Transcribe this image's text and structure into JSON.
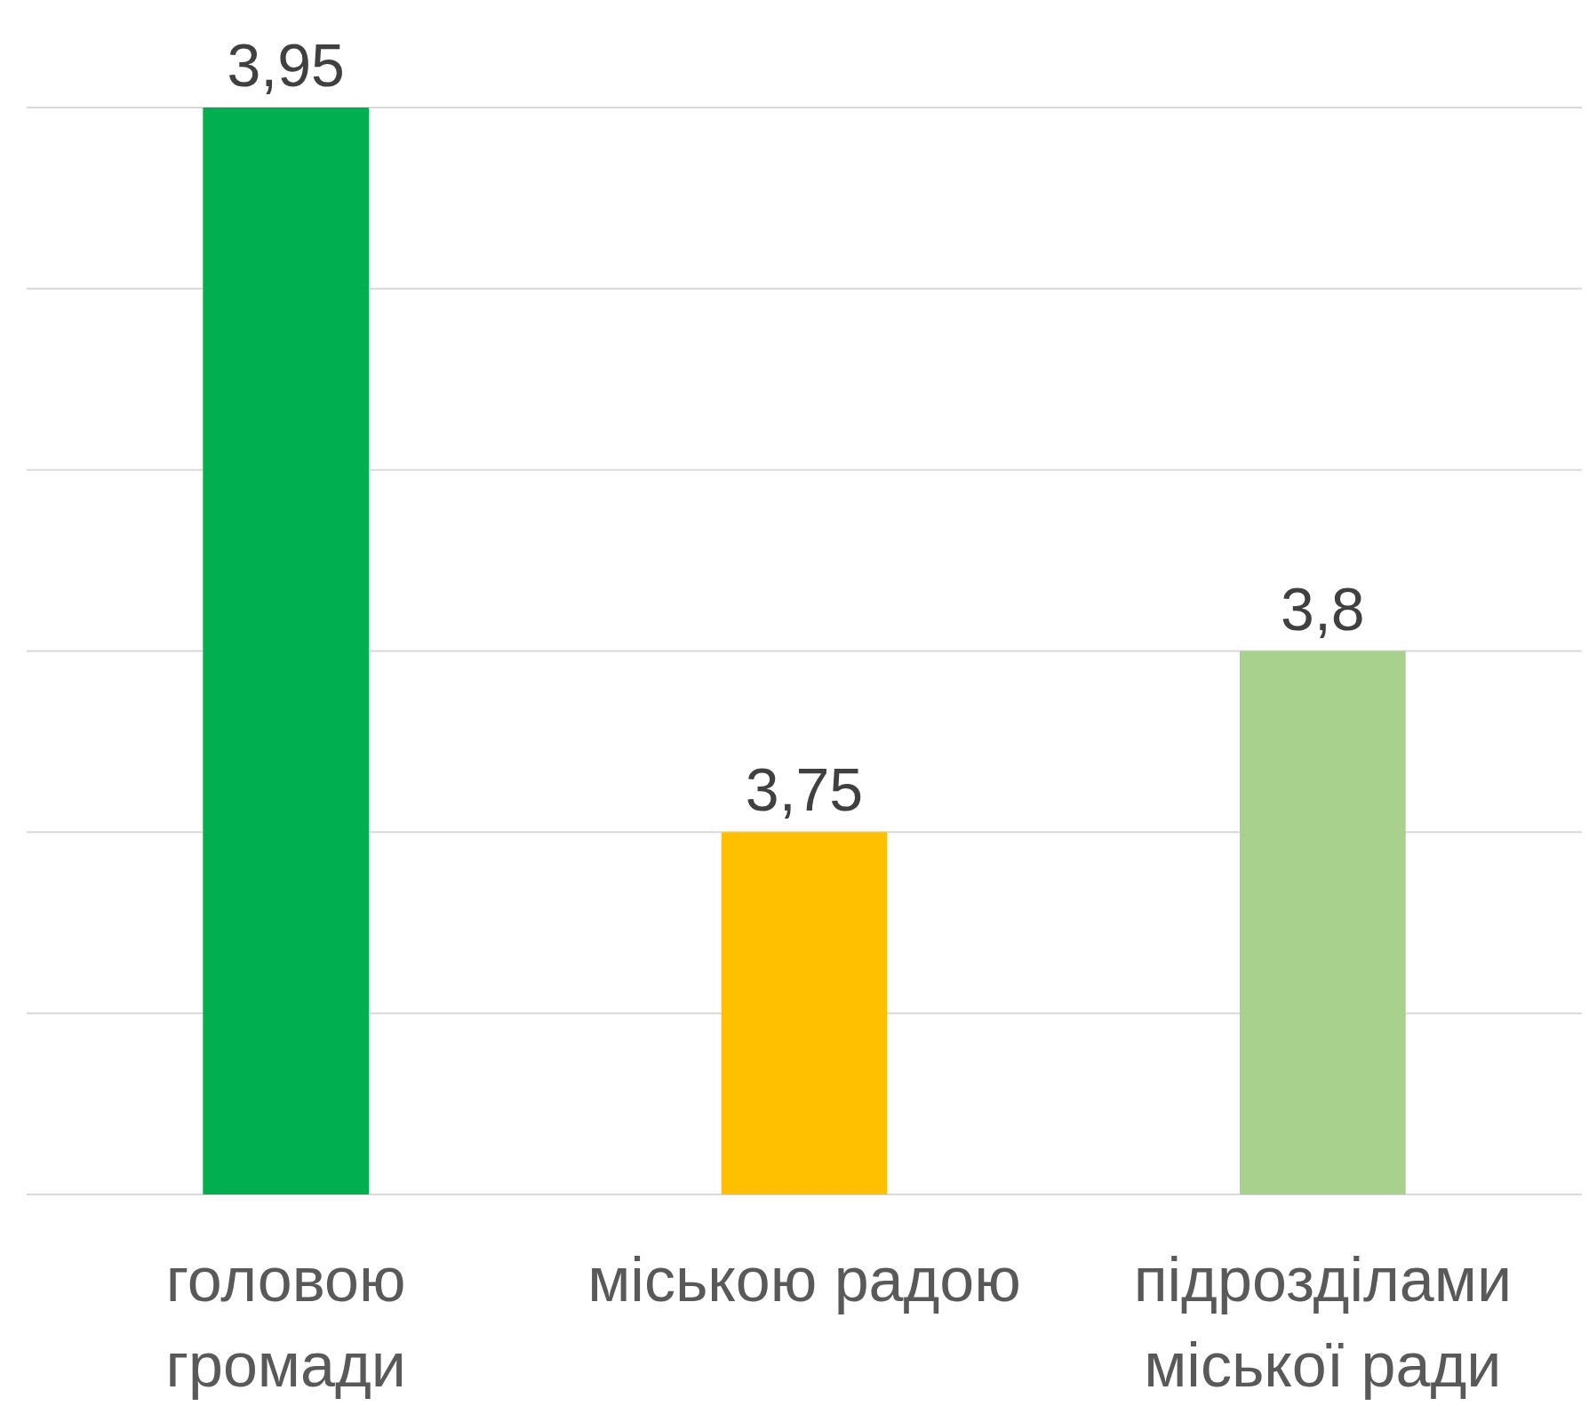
{
  "chart_data": {
    "type": "bar",
    "categories": [
      "головою громади",
      "міською радою",
      "підрозділами міської ради"
    ],
    "values": [
      3.95,
      3.75,
      3.8
    ],
    "colors": [
      "#00b050",
      "#ffc000",
      "#a9d18e"
    ],
    "value_labels": [
      "3,95",
      "3,75",
      "3,8"
    ],
    "ylim": [
      3.65,
      3.95
    ],
    "yticks": [
      {
        "value": 3.65,
        "label": null
      },
      {
        "value": 3.7,
        "label": null
      },
      {
        "value": 3.75,
        "label": null
      },
      {
        "value": 3.8,
        "label": null
      },
      {
        "value": 3.85,
        "label": null
      },
      {
        "value": 3.9,
        "label": null
      },
      {
        "value": 3.95,
        "label": null
      }
    ],
    "grid": "y",
    "tick_labels": "x"
  }
}
